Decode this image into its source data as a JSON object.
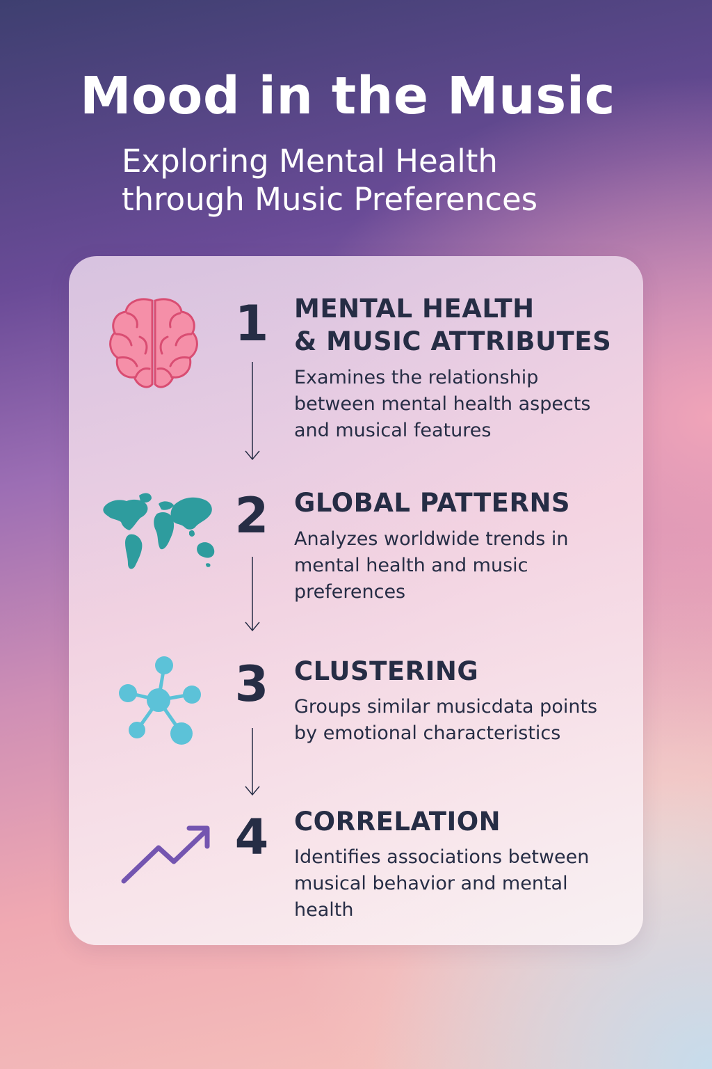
{
  "header": {
    "title": "Mood in the Music",
    "subtitle_line1": "Exploring Mental Health",
    "subtitle_line2": "through Music Preferences"
  },
  "steps": [
    {
      "number": "1",
      "title_line1": "MENTAL HEALTH",
      "title_line2": "& MUSIC ATTRIBUTES",
      "description": "Examines the relationship between mental health aspects and musical features",
      "icon": "brain-icon"
    },
    {
      "number": "2",
      "title_line1": "GLOBAL PATTERNS",
      "description": "Analyzes worldwide trends in mental health and music preferences",
      "icon": "world-map-icon"
    },
    {
      "number": "3",
      "title_line1": "CLUSTERING",
      "description": "Groups similar musicdata points by emotional characteristics",
      "icon": "network-cluster-icon"
    },
    {
      "number": "4",
      "title_line1": "CORRELATION",
      "description": "Identifies associations between musical behavior and mental health",
      "icon": "trend-up-arrow-icon"
    }
  ],
  "colors": {
    "text_dark": "#262d45",
    "brain_pink": "#f58fa8",
    "map_teal": "#2e9c9e",
    "cluster_blue": "#5cc2d8",
    "trend_purple": "#7455b0"
  }
}
